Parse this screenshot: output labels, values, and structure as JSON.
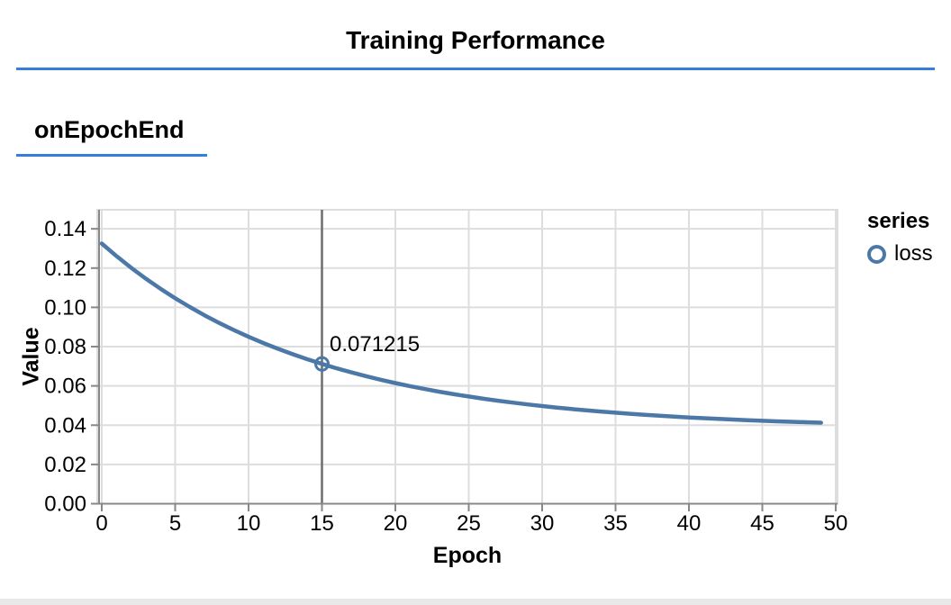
{
  "header": {
    "title": "Training Performance"
  },
  "section": {
    "label": "onEpochEnd"
  },
  "colors": {
    "accent_blue": "#357edd",
    "series_blue": "#4c78a8",
    "grid": "#dddddd",
    "axis": "#888888",
    "cursor_rule": "#6e6e6e",
    "text": "#000000",
    "bottom_bar": "#e8e8e8"
  },
  "chart_data": {
    "type": "line",
    "xlabel": "Epoch",
    "ylabel": "Value",
    "xlim": [
      0,
      50
    ],
    "ylim": [
      0,
      0.15
    ],
    "x_ticks": [
      0,
      5,
      10,
      15,
      20,
      25,
      30,
      35,
      40,
      45,
      50
    ],
    "y_ticks": [
      0,
      0.02,
      0.04,
      0.06,
      0.08,
      0.1,
      0.12,
      0.14
    ],
    "grid": true,
    "legend": {
      "title": "series",
      "position": "right",
      "entries": [
        {
          "label": "loss",
          "marker": "open-circle",
          "color": "#4c78a8"
        }
      ]
    },
    "series": [
      {
        "name": "loss",
        "x": [
          0,
          1,
          2,
          3,
          4,
          5,
          6,
          7,
          8,
          9,
          10,
          11,
          12,
          13,
          14,
          15,
          16,
          17,
          18,
          19,
          20,
          21,
          22,
          23,
          24,
          25,
          26,
          27,
          28,
          29,
          30,
          31,
          32,
          33,
          34,
          35,
          36,
          37,
          38,
          39,
          40,
          41,
          42,
          43,
          44,
          45,
          46,
          47,
          48,
          49
        ],
        "values": [
          0.1325,
          0.126125,
          0.120181,
          0.114638,
          0.10947,
          0.104652,
          0.10016,
          0.095971,
          0.092065,
          0.088423,
          0.085028,
          0.081862,
          0.07891,
          0.076158,
          0.073592,
          0.071215,
          0.068968,
          0.066888,
          0.064949,
          0.06314,
          0.061454,
          0.059882,
          0.058416,
          0.057049,
          0.055775,
          0.054587,
          0.053479,
          0.052446,
          0.051483,
          0.050585,
          0.049748,
          0.048967,
          0.048239,
          0.04756,
          0.046928,
          0.046338,
          0.045787,
          0.045274,
          0.044796,
          0.04435,
          0.043934,
          0.043547,
          0.043185,
          0.042848,
          0.042534,
          0.042241,
          0.041968,
          0.041713,
          0.041476,
          0.041254
        ]
      }
    ],
    "cursor": {
      "x": 15,
      "value": 0.071215,
      "label": "0.071215"
    }
  }
}
